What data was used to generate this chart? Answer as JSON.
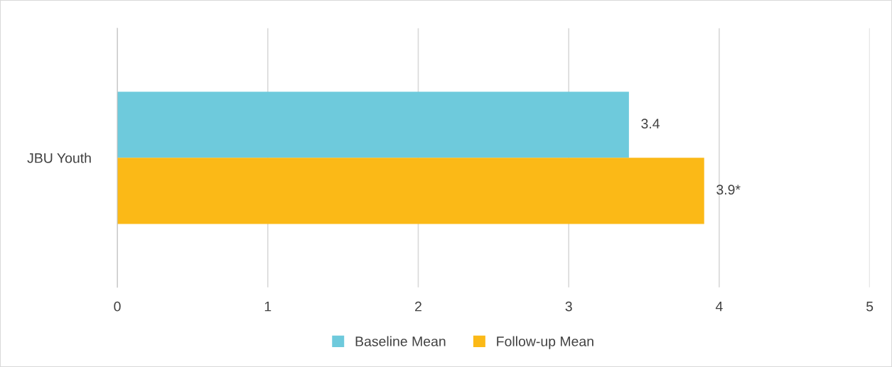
{
  "chart_data": {
    "type": "bar",
    "orientation": "horizontal",
    "categories": [
      "JBU Youth"
    ],
    "series": [
      {
        "name": "Baseline Mean",
        "color": "#6ecadc",
        "values": [
          3.4
        ],
        "value_labels": [
          "3.4"
        ]
      },
      {
        "name": "Follow-up Mean",
        "color": "#fbb917",
        "values": [
          3.9
        ],
        "value_labels": [
          "3.9*"
        ]
      }
    ],
    "xlim": [
      0,
      5
    ],
    "xticks": [
      0,
      1,
      2,
      3,
      4,
      5
    ],
    "grid": "x",
    "legend": "bottom"
  }
}
